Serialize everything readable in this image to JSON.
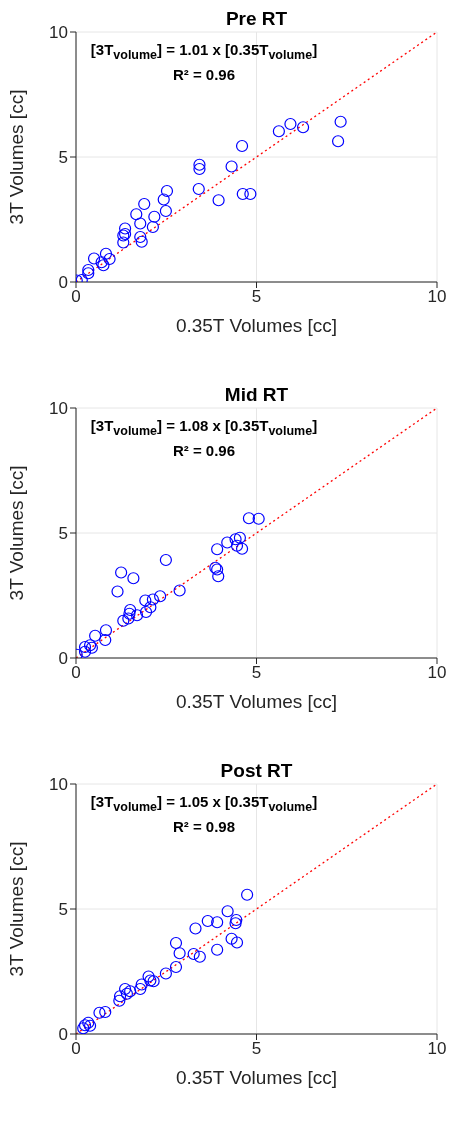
{
  "chart_data": [
    {
      "type": "scatter",
      "title": "Pre RT",
      "xlabel": "0.35T Volumes [cc]",
      "ylabel": "3T Volumes [cc]",
      "xlim": [
        0,
        10
      ],
      "ylim": [
        0,
        10
      ],
      "xticks": [
        0,
        5,
        10
      ],
      "yticks": [
        0,
        5,
        10
      ],
      "grid": true,
      "annotations": [
        "[3T$_{volume}$] = 1.01 x [0.35T$_{volume}$]",
        "R² = 0.96"
      ],
      "series": [
        {
          "marker": "circle",
          "color": "#0000ff",
          "x": [
            4.6,
            5.62,
            5.94,
            6.29,
            7.33,
            7.26,
            4.31,
            3.42,
            3.42,
            3.4,
            3.95,
            4.62,
            4.83,
            2.52,
            2.43,
            2.49,
            1.89,
            1.67,
            2.17,
            1.78,
            2.13,
            1.36,
            1.31,
            1.36,
            1.31,
            1.78,
            1.82,
            0.83,
            0.5,
            0.93,
            0.71,
            0.76,
            0.34,
            0.34,
            0.02,
            0.16
          ],
          "values": [
            5.44,
            6.03,
            6.32,
            6.19,
            6.41,
            5.63,
            4.62,
            4.69,
            4.52,
            3.72,
            3.27,
            3.52,
            3.52,
            3.64,
            3.3,
            2.84,
            3.12,
            2.71,
            2.61,
            2.34,
            2.2,
            2.14,
            1.86,
            1.92,
            1.58,
            1.8,
            1.61,
            1.13,
            0.94,
            0.92,
            0.79,
            0.67,
            0.48,
            0.35,
            0.06,
            0.08
          ]
        },
        {
          "type": "line",
          "color": "#ff0000",
          "line_style": "dotted",
          "x": [
            0,
            10
          ],
          "values": [
            0,
            10
          ]
        }
      ]
    },
    {
      "type": "scatter",
      "title": "Mid RT",
      "xlabel": "0.35T Volumes [cc]",
      "ylabel": "3T Volumes [cc]",
      "xlim": [
        0,
        10
      ],
      "ylim": [
        0,
        10
      ],
      "xticks": [
        0,
        5,
        10
      ],
      "yticks": [
        0,
        5,
        10
      ],
      "grid": true,
      "annotations": [
        "[3T$_{volume}$] = 1.08 x [0.35T$_{volume}$]",
        "R² = 0.96"
      ],
      "series": [
        {
          "marker": "circle",
          "color": "#0000ff",
          "x": [
            4.79,
            5.06,
            4.19,
            4.42,
            4.54,
            4.46,
            4.6,
            3.91,
            3.86,
            3.91,
            3.94,
            2.49,
            1.25,
            1.59,
            1.15,
            2.87,
            2.33,
            2.13,
            1.92,
            2.06,
            1.94,
            1.5,
            1.48,
            1.45,
            1.31,
            1.69,
            0.83,
            0.81,
            0.53,
            0.39,
            0.25,
            0.25,
            0.02,
            0.44
          ],
          "values": [
            5.59,
            5.57,
            4.62,
            4.75,
            4.81,
            4.49,
            4.37,
            4.35,
            3.61,
            3.54,
            3.27,
            3.92,
            3.42,
            3.19,
            2.66,
            2.7,
            2.47,
            2.34,
            2.3,
            2.03,
            1.84,
            1.92,
            1.77,
            1.58,
            1.49,
            1.71,
            1.11,
            0.72,
            0.89,
            0.51,
            0.44,
            0.25,
            0.13,
            0.41
          ]
        },
        {
          "type": "line",
          "color": "#ff0000",
          "line_style": "dotted",
          "x": [
            0,
            10
          ],
          "values": [
            0,
            10
          ]
        }
      ]
    },
    {
      "type": "scatter",
      "title": "Post RT",
      "xlabel": "0.35T Volumes [cc]",
      "ylabel": "3T Volumes [cc]",
      "xlim": [
        0,
        10
      ],
      "ylim": [
        0,
        10
      ],
      "xticks": [
        0,
        5,
        10
      ],
      "yticks": [
        0,
        5,
        10
      ],
      "grid": true,
      "annotations": [
        "[3T$_{volume}$] = 1.05 x [0.35T$_{volume}$]",
        "R² = 0.98"
      ],
      "series": [
        {
          "marker": "circle",
          "color": "#0000ff",
          "x": [
            4.74,
            4.2,
            3.65,
            3.91,
            4.44,
            4.42,
            3.31,
            4.31,
            4.46,
            3.91,
            2.77,
            2.87,
            3.26,
            3.43,
            2.77,
            2.49,
            2.01,
            2.06,
            2.15,
            1.82,
            1.78,
            1.5,
            1.36,
            1.41,
            1.22,
            1.2,
            0.65,
            0.81,
            0.34,
            0.25,
            0.2,
            0.39
          ],
          "values": [
            5.57,
            4.91,
            4.52,
            4.47,
            4.56,
            4.43,
            4.22,
            3.81,
            3.66,
            3.37,
            3.64,
            3.23,
            3.2,
            3.09,
            2.68,
            2.42,
            2.3,
            2.14,
            2.11,
            1.98,
            1.8,
            1.71,
            1.8,
            1.61,
            1.51,
            1.33,
            0.85,
            0.88,
            0.45,
            0.35,
            0.23,
            0.33
          ]
        },
        {
          "type": "line",
          "color": "#ff0000",
          "line_style": "dotted",
          "x": [
            0,
            10
          ],
          "values": [
            0,
            10
          ]
        }
      ]
    }
  ]
}
